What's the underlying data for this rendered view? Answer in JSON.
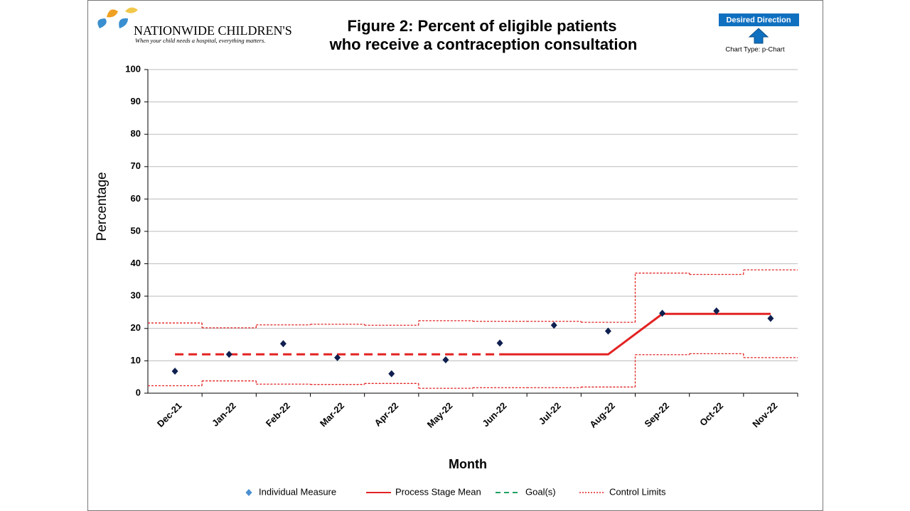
{
  "header": {
    "logo": "NATIONWIDE CHILDREN'S",
    "tagline": "When your child needs a hospital, everything matters.",
    "desired_direction": "Desired Direction",
    "chart_type": "Chart Type: p-Chart"
  },
  "chart_data": {
    "type": "p-chart",
    "title": [
      "Figure 2: Percent of eligible patients",
      "who receive a contraception consultation"
    ],
    "x_label": "Month",
    "y_label": "Percentage",
    "categories": [
      "Dec-21",
      "Jan-22",
      "Feb-22",
      "Mar-22",
      "Apr-22",
      "May-22",
      "Jun-22",
      "Jul-22",
      "Aug-22",
      "Sep-22",
      "Oct-22",
      "Nov-22"
    ],
    "ylim": [
      0,
      100
    ],
    "yticks": [
      0,
      10,
      20,
      30,
      40,
      50,
      60,
      70,
      80,
      90,
      100
    ],
    "grid": true,
    "series": [
      {
        "name": "Individual Measure",
        "color": "#0f1f4f",
        "values": [
          6.8,
          12,
          15.3,
          11,
          6,
          10.3,
          15.5,
          21,
          19.2,
          24.7,
          25.4,
          23.1
        ]
      },
      {
        "name": "Process Stage Mean",
        "color": "#e32222",
        "values": [
          12,
          12,
          12,
          12,
          12,
          12,
          12,
          12,
          12,
          24.5,
          24.5,
          24.5
        ],
        "line_styles": [
          "dashed",
          "dashed",
          "dashed",
          "dashed",
          "dashed",
          "dashed",
          "solid",
          "solid",
          "solid",
          "solid",
          "solid"
        ]
      },
      {
        "name": "Goal(s)",
        "color": "#1fa060",
        "values": [
          null,
          null,
          null,
          null,
          null,
          null,
          null,
          null,
          null,
          null,
          null,
          null
        ]
      },
      {
        "name": "Control Limits",
        "color": "#e32222",
        "upper": [
          21.7,
          20.2,
          21.1,
          21.3,
          21.0,
          22.4,
          22.2,
          22.2,
          21.9,
          37.1,
          36.7,
          38.1
        ],
        "lower": [
          2.3,
          3.8,
          2.8,
          2.7,
          3.0,
          1.5,
          1.7,
          1.7,
          1.9,
          11.9,
          12.2,
          11.0
        ]
      }
    ]
  }
}
